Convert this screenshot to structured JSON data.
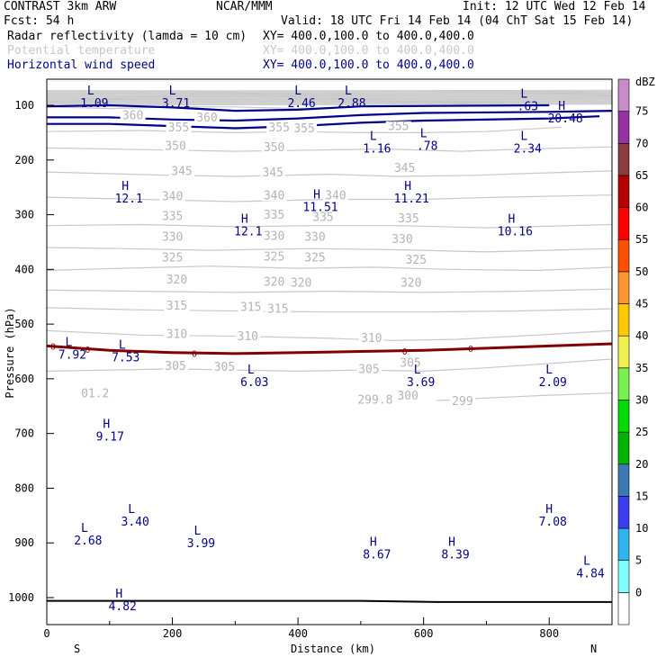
{
  "header": {
    "left": "CONTRAST  3km ARW",
    "center": "NCAR/MMM",
    "init": "Init: 12 UTC Wed 12 Feb 14",
    "fcst": "Fcst:   54 h",
    "valid": "Valid: 18 UTC Fri 14 Feb 14 (04 ChT Sat 15 Feb 14)",
    "fields": [
      {
        "name": "Radar reflectivity (lamda = 10 cm)",
        "xy": "XY= 400.0,100.0 to 400.0,400.0",
        "color": "#000000"
      },
      {
        "name": "Potential temperature",
        "xy": "XY= 400.0,100.0 to 400.0,400.0",
        "color": "#c8c8c8"
      },
      {
        "name": "Horizontal wind speed",
        "xy": "XY= 400.0,100.0 to 400.0,400.0",
        "color": "#00008b"
      }
    ]
  },
  "chart_data": {
    "type": "contour",
    "xlabel": "Distance (km)",
    "ylabel": "Pressure (hPa)",
    "xlim": [
      0,
      900
    ],
    "ylim": [
      1050,
      70
    ],
    "xticks": [
      0,
      200,
      400,
      600,
      800
    ],
    "yticks": [
      100,
      200,
      300,
      400,
      500,
      600,
      700,
      800,
      900,
      1000
    ],
    "x_end_labels": {
      "left": "S",
      "right": "N"
    },
    "colorbar": {
      "unit": "dBZ",
      "levels": [
        0,
        5,
        10,
        15,
        20,
        25,
        30,
        35,
        40,
        45,
        50,
        55,
        60,
        65,
        70,
        75
      ],
      "colors": [
        "#ffffff",
        "#80ffff",
        "#30b4f0",
        "#3c3cf0",
        "#3c78b4",
        "#00b400",
        "#00dc00",
        "#78f050",
        "#f0f050",
        "#ffc800",
        "#ff9632",
        "#ff5000",
        "#ff0000",
        "#b40000",
        "#8c3c3c",
        "#9632a0",
        "#c88cc8"
      ]
    },
    "theta_contours": [
      {
        "label": "360",
        "points": [
          [
            0,
            103
          ],
          [
            100,
            106
          ],
          [
            200,
            103
          ],
          [
            300,
            103
          ],
          [
            400,
            106
          ],
          [
            500,
            103
          ]
        ]
      },
      {
        "label": "355",
        "points": [
          [
            0,
            148
          ],
          [
            150,
            146
          ],
          [
            300,
            150
          ],
          [
            400,
            148
          ],
          [
            500,
            150
          ],
          [
            600,
            150
          ],
          [
            700,
            148
          ],
          [
            820,
            140
          ]
        ]
      },
      {
        "label": "350",
        "points": [
          [
            0,
            178
          ],
          [
            200,
            182
          ],
          [
            300,
            184
          ],
          [
            420,
            182
          ],
          [
            540,
            180
          ],
          [
            660,
            184
          ],
          [
            760,
            180
          ],
          [
            900,
            176
          ]
        ]
      },
      {
        "label": "345",
        "points": [
          [
            0,
            222
          ],
          [
            200,
            228
          ],
          [
            300,
            230
          ],
          [
            450,
            226
          ],
          [
            560,
            230
          ],
          [
            680,
            228
          ],
          [
            780,
            224
          ],
          [
            900,
            220
          ]
        ]
      },
      {
        "label": "340",
        "points": [
          [
            0,
            268
          ],
          [
            150,
            272
          ],
          [
            300,
            276
          ],
          [
            450,
            272
          ],
          [
            600,
            272
          ],
          [
            720,
            268
          ],
          [
            900,
            264
          ]
        ]
      },
      {
        "label": "335",
        "points": [
          [
            0,
            320
          ],
          [
            150,
            318
          ],
          [
            300,
            322
          ],
          [
            420,
            320
          ],
          [
            560,
            320
          ],
          [
            700,
            324
          ],
          [
            900,
            318
          ]
        ]
      },
      {
        "label": "330",
        "points": [
          [
            0,
            360
          ],
          [
            120,
            362
          ],
          [
            260,
            365
          ],
          [
            420,
            362
          ],
          [
            560,
            364
          ],
          [
            700,
            368
          ],
          [
            900,
            362
          ]
        ]
      },
      {
        "label": "325",
        "points": [
          [
            0,
            402
          ],
          [
            120,
            398
          ],
          [
            260,
            394
          ],
          [
            400,
            398
          ],
          [
            520,
            396
          ],
          [
            640,
            400
          ],
          [
            780,
            402
          ],
          [
            900,
            396
          ]
        ]
      },
      {
        "label": "320",
        "points": [
          [
            0,
            438
          ],
          [
            150,
            440
          ],
          [
            300,
            442
          ],
          [
            450,
            440
          ],
          [
            600,
            442
          ],
          [
            750,
            440
          ],
          [
            900,
            436
          ]
        ]
      },
      {
        "label": "315",
        "points": [
          [
            0,
            470
          ],
          [
            150,
            474
          ],
          [
            300,
            476
          ],
          [
            450,
            478
          ],
          [
            600,
            478
          ],
          [
            750,
            476
          ],
          [
            900,
            472
          ]
        ]
      },
      {
        "label": "310",
        "points": [
          [
            0,
            512
          ],
          [
            150,
            520
          ],
          [
            300,
            522
          ],
          [
            450,
            526
          ],
          [
            550,
            530
          ],
          [
            650,
            528
          ],
          [
            780,
            520
          ],
          [
            900,
            512
          ]
        ]
      },
      {
        "label": "305",
        "points": [
          [
            0,
            586
          ],
          [
            100,
            584
          ],
          [
            200,
            582
          ],
          [
            300,
            584
          ],
          [
            400,
            586
          ],
          [
            500,
            584
          ],
          [
            600,
            586
          ],
          [
            700,
            580
          ],
          [
            800,
            572
          ],
          [
            900,
            564
          ]
        ]
      },
      {
        "label": "300",
        "points": [
          [
            620,
            640
          ],
          [
            700,
            635
          ],
          [
            800,
            630
          ],
          [
            900,
            626
          ]
        ]
      }
    ],
    "theta_labels": [
      {
        "text": "360",
        "x": 137,
        "y": 124
      },
      {
        "text": "360",
        "x": 255,
        "y": 128
      },
      {
        "text": "355",
        "x": 210,
        "y": 146
      },
      {
        "text": "355",
        "x": 370,
        "y": 146
      },
      {
        "text": "355",
        "x": 410,
        "y": 148
      },
      {
        "text": "355",
        "x": 560,
        "y": 144
      },
      {
        "text": "350",
        "x": 205,
        "y": 180
      },
      {
        "text": "350",
        "x": 362,
        "y": 182
      },
      {
        "text": "345",
        "x": 215,
        "y": 226
      },
      {
        "text": "345",
        "x": 360,
        "y": 228
      },
      {
        "text": "345",
        "x": 570,
        "y": 220
      },
      {
        "text": "340",
        "x": 200,
        "y": 272
      },
      {
        "text": "340",
        "x": 362,
        "y": 270
      },
      {
        "text": "340",
        "x": 460,
        "y": 270
      },
      {
        "text": "335",
        "x": 200,
        "y": 308
      },
      {
        "text": "335",
        "x": 362,
        "y": 306
      },
      {
        "text": "335",
        "x": 440,
        "y": 310
      },
      {
        "text": "335",
        "x": 576,
        "y": 312
      },
      {
        "text": "330",
        "x": 200,
        "y": 346
      },
      {
        "text": "330",
        "x": 362,
        "y": 344
      },
      {
        "text": "330",
        "x": 427,
        "y": 346
      },
      {
        "text": "330",
        "x": 566,
        "y": 350
      },
      {
        "text": "325",
        "x": 200,
        "y": 384
      },
      {
        "text": "325",
        "x": 362,
        "y": 382
      },
      {
        "text": "325",
        "x": 427,
        "y": 384
      },
      {
        "text": "325",
        "x": 588,
        "y": 388
      },
      {
        "text": "320",
        "x": 207,
        "y": 424
      },
      {
        "text": "320",
        "x": 362,
        "y": 428
      },
      {
        "text": "320",
        "x": 405,
        "y": 430
      },
      {
        "text": "320",
        "x": 580,
        "y": 430
      },
      {
        "text": "315",
        "x": 207,
        "y": 472
      },
      {
        "text": "315",
        "x": 325,
        "y": 474
      },
      {
        "text": "315",
        "x": 368,
        "y": 478
      },
      {
        "text": "310",
        "x": 207,
        "y": 524
      },
      {
        "text": "310",
        "x": 320,
        "y": 528
      },
      {
        "text": "310",
        "x": 517,
        "y": 531
      },
      {
        "text": "305",
        "x": 205,
        "y": 582
      },
      {
        "text": "305",
        "x": 283,
        "y": 584
      },
      {
        "text": "305",
        "x": 513,
        "y": 588
      },
      {
        "text": "305",
        "x": 579,
        "y": 576
      },
      {
        "text": "300",
        "x": 575,
        "y": 636
      },
      {
        "text": "299",
        "x": 662,
        "y": 646
      },
      {
        "text": "299.8",
        "x": 523,
        "y": 644
      },
      {
        "text": "01.2",
        "x": 77,
        "y": 632
      }
    ],
    "wind_isotachs": [
      {
        "points": [
          [
            0,
            102
          ],
          [
            100,
            100
          ],
          [
            200,
            104
          ],
          [
            300,
            110
          ],
          [
            400,
            108
          ],
          [
            500,
            102
          ],
          [
            800,
            100
          ]
        ]
      },
      {
        "points": [
          [
            0,
            122
          ],
          [
            100,
            122
          ],
          [
            200,
            126
          ],
          [
            300,
            128
          ],
          [
            400,
            124
          ],
          [
            500,
            118
          ],
          [
            600,
            114
          ],
          [
            800,
            112
          ],
          [
            900,
            110
          ]
        ]
      },
      {
        "points": [
          [
            0,
            134
          ],
          [
            100,
            134
          ],
          [
            200,
            138
          ],
          [
            300,
            142
          ],
          [
            400,
            138
          ],
          [
            500,
            132
          ],
          [
            600,
            128
          ],
          [
            800,
            124
          ],
          [
            880,
            120
          ]
        ]
      }
    ],
    "reflectivity_line": {
      "label": "0",
      "points": [
        [
          0,
          540
        ],
        [
          100,
          548
        ],
        [
          200,
          552
        ],
        [
          300,
          554
        ],
        [
          400,
          552
        ],
        [
          500,
          550
        ],
        [
          600,
          548
        ],
        [
          700,
          544
        ],
        [
          800,
          540
        ],
        [
          900,
          536
        ]
      ]
    },
    "surface_line": {
      "points": [
        [
          0,
          1006
        ],
        [
          300,
          1006
        ],
        [
          500,
          1006
        ],
        [
          620,
          1008
        ],
        [
          900,
          1008
        ]
      ]
    },
    "highs_lows": [
      {
        "type": "L",
        "value": "1.09",
        "x": 70,
        "y": 80
      },
      {
        "type": "L",
        "value": "3.71",
        "x": 200,
        "y": 80
      },
      {
        "type": "L",
        "value": "2.46",
        "x": 400,
        "y": 80
      },
      {
        "type": "L",
        "value": "2.88",
        "x": 480,
        "y": 80
      },
      {
        "type": "L",
        "value": ".63",
        "x": 760,
        "y": 86
      },
      {
        "type": "H",
        "value": "20.48",
        "x": 820,
        "y": 108
      },
      {
        "type": "L",
        "value": "1.16",
        "x": 520,
        "y": 163
      },
      {
        "type": "L",
        "value": ".78",
        "x": 600,
        "y": 158
      },
      {
        "type": "L",
        "value": "2.34",
        "x": 760,
        "y": 163
      },
      {
        "type": "H",
        "value": "12.1",
        "x": 125,
        "y": 255
      },
      {
        "type": "H",
        "value": "11.51",
        "x": 430,
        "y": 270
      },
      {
        "type": "H",
        "value": "11.21",
        "x": 575,
        "y": 255
      },
      {
        "type": "H",
        "value": "12.1",
        "x": 315,
        "y": 315
      },
      {
        "type": "H",
        "value": "10.16",
        "x": 740,
        "y": 315
      },
      {
        "type": "L",
        "value": "7.92",
        "x": 35,
        "y": 540
      },
      {
        "type": "L",
        "value": "7.53",
        "x": 120,
        "y": 545
      },
      {
        "type": "L",
        "value": "6.03",
        "x": 325,
        "y": 590
      },
      {
        "type": "L",
        "value": "3.69",
        "x": 590,
        "y": 590
      },
      {
        "type": "L",
        "value": "2.09",
        "x": 800,
        "y": 590
      },
      {
        "type": "H",
        "value": "9.17",
        "x": 95,
        "y": 690
      },
      {
        "type": "L",
        "value": "3.40",
        "x": 135,
        "y": 845
      },
      {
        "type": "H",
        "value": "7.08",
        "x": 800,
        "y": 845
      },
      {
        "type": "L",
        "value": "2.68",
        "x": 60,
        "y": 880
      },
      {
        "type": "L",
        "value": "3.99",
        "x": 240,
        "y": 885
      },
      {
        "type": "H",
        "value": "8.67",
        "x": 520,
        "y": 905
      },
      {
        "type": "H",
        "value": "8.39",
        "x": 645,
        "y": 905
      },
      {
        "type": "L",
        "value": "4.84",
        "x": 860,
        "y": 940
      },
      {
        "type": "H",
        "value": "4.82",
        "x": 115,
        "y": 1000
      }
    ]
  }
}
